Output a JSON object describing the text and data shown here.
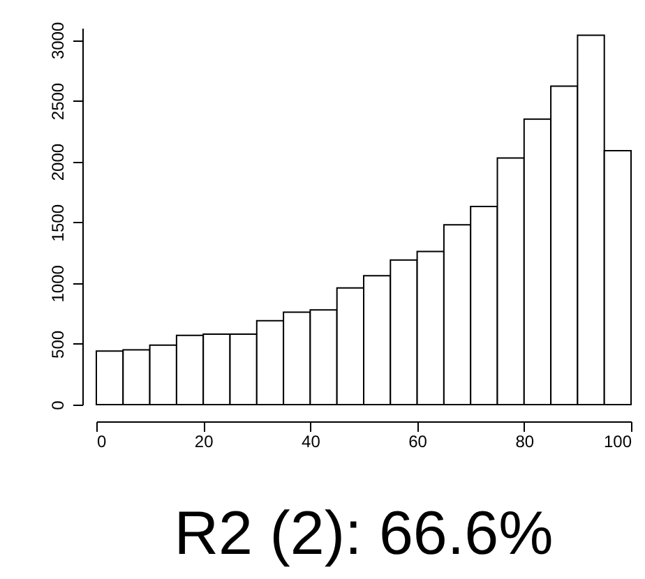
{
  "chart_data": {
    "type": "histogram",
    "title": "R2 (2): 66.6%",
    "bins": [
      0,
      5,
      10,
      15,
      20,
      25,
      30,
      35,
      40,
      45,
      50,
      55,
      60,
      65,
      70,
      75,
      80,
      85,
      90,
      95,
      100
    ],
    "values": [
      440,
      450,
      490,
      570,
      580,
      580,
      690,
      760,
      780,
      960,
      1060,
      1190,
      1260,
      1480,
      1630,
      2030,
      2350,
      2620,
      3040,
      2090
    ],
    "color": "#ffffff",
    "xlim": [
      0,
      100
    ],
    "xticks": [
      0,
      20,
      40,
      60,
      80,
      100
    ],
    "ylim": [
      0,
      3100
    ],
    "yticks": [
      0,
      500,
      1000,
      1500,
      2000,
      2500,
      3000
    ],
    "grid": false
  }
}
